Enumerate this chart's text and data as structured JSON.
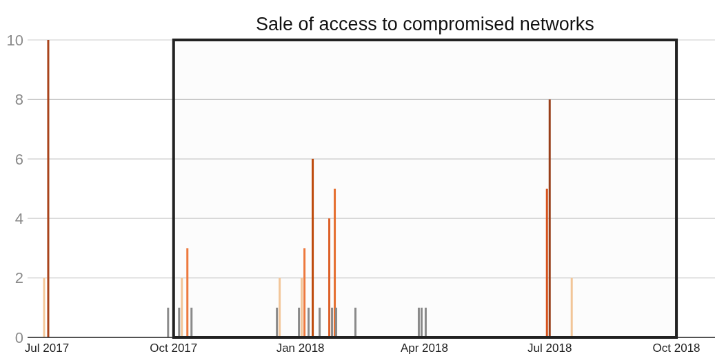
{
  "chart_data": {
    "type": "bar",
    "x": [
      "2017-06-29",
      "2017-07-02",
      "2017-09-27",
      "2017-10-05",
      "2017-10-07",
      "2017-10-11",
      "2017-10-14",
      "2017-12-15",
      "2017-12-17",
      "2017-12-31",
      "2018-01-02",
      "2018-01-04",
      "2018-01-07",
      "2018-01-10",
      "2018-01-15",
      "2018-01-22",
      "2018-01-24",
      "2018-01-26",
      "2018-01-27",
      "2018-02-10",
      "2018-03-28",
      "2018-03-30",
      "2018-04-02",
      "2018-06-29",
      "2018-07-01",
      "2018-07-17"
    ],
    "values": [
      2,
      10,
      1,
      1,
      2,
      3,
      1,
      1,
      2,
      1,
      2,
      3,
      1,
      6,
      1,
      4,
      1,
      5,
      1,
      1,
      1,
      1,
      1,
      5,
      8,
      2
    ],
    "colors": [
      "#f5c89a",
      "#a9441c",
      "#8c8c8c",
      "#8c8c8c",
      "#f5c89a",
      "#f07b3f",
      "#8c8c8c",
      "#8c8c8c",
      "#f5c89a",
      "#8c8c8c",
      "#f5c89a",
      "#f07b3f",
      "#8c8c8c",
      "#c04a0a",
      "#8c8c8c",
      "#e0622a",
      "#8c8c8c",
      "#e8702f",
      "#8c8c8c",
      "#8c8c8c",
      "#8c8c8c",
      "#8c8c8c",
      "#8c8c8c",
      "#d9531e",
      "#9a3f1a",
      "#f5c89a"
    ],
    "xlim": [
      "2017-06-17",
      "2018-10-29"
    ],
    "xticks": [
      {
        "value": "2017-07-01",
        "label": "Jul 2017"
      },
      {
        "value": "2017-10-01",
        "label": "Oct 2017"
      },
      {
        "value": "2018-01-01",
        "label": "Jan 2018"
      },
      {
        "value": "2018-04-01",
        "label": "Apr 2018"
      },
      {
        "value": "2018-07-01",
        "label": "Jul 2018"
      },
      {
        "value": "2018-10-01",
        "label": "Oct 2018"
      }
    ],
    "ylim": [
      0,
      10
    ],
    "yticks": [
      0,
      2,
      4,
      6,
      8,
      10
    ],
    "grid": "y",
    "bands": [
      {
        "axis": "x",
        "from": "2017-10-01",
        "to": "2018-10-01",
        "label": "Sale of access to compromised networks",
        "color": "#222222"
      }
    ]
  }
}
